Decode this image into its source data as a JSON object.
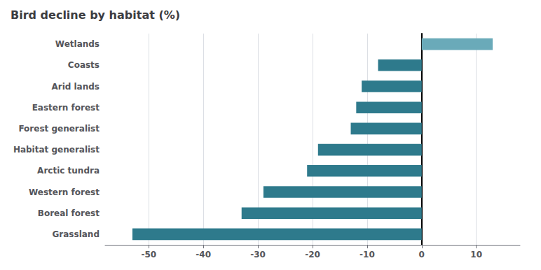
{
  "chart_data": {
    "type": "bar",
    "orientation": "horizontal",
    "title": "Bird decline by habitat (%)",
    "categories": [
      "Wetlands",
      "Coasts",
      "Arid lands",
      "Eastern forest",
      "Forest generalist",
      "Habitat generalist",
      "Arctic tundra",
      "Western forest",
      "Boreal forest",
      "Grassland"
    ],
    "values": [
      13,
      -8,
      -11,
      -12,
      -13,
      -19,
      -21,
      -29,
      -33,
      -53
    ],
    "colors": [
      "#6aaab9",
      "#2e7a8c",
      "#2e7a8c",
      "#2e7a8c",
      "#2e7a8c",
      "#2e7a8c",
      "#2e7a8c",
      "#2e7a8c",
      "#2e7a8c",
      "#2e7a8c"
    ],
    "xlim": [
      -58,
      18
    ],
    "xticks": [
      -50,
      -40,
      -30,
      -20,
      -10,
      0,
      10
    ],
    "grid": true
  }
}
